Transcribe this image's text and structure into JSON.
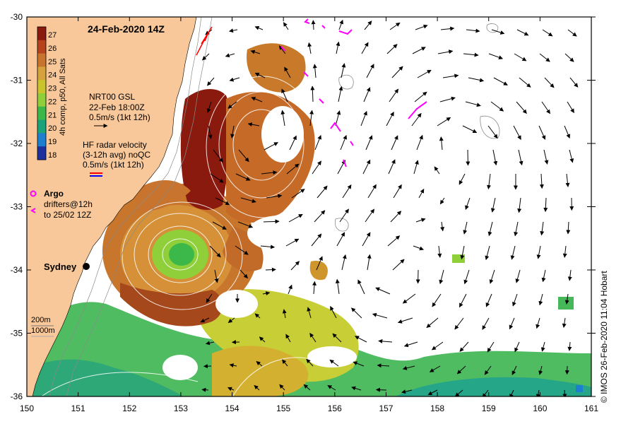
{
  "title": "24-Feb-2020 14Z",
  "colorbar": {
    "label": "4h comp, p50, All Sats",
    "ticks": [
      "27",
      "26",
      "25",
      "24",
      "23",
      "22",
      "21",
      "20",
      "19",
      "18"
    ],
    "colors": [
      "#8b1a0e",
      "#b6431c",
      "#c8742e",
      "#d6a23c",
      "#c9c42c",
      "#8fcf3a",
      "#3cb84a",
      "#18a37a",
      "#1d7fd0",
      "#1e2f9e"
    ]
  },
  "legend": {
    "gsl_title": "NRT00 GSL",
    "gsl_date": "22-Feb 18:00Z",
    "gsl_scale": "0.5m/s (1kt 12h)",
    "radar_title": "HF radar velocity",
    "radar_sub": "(3-12h avg) noQC",
    "radar_scale": "0.5m/s (1kt 12h)",
    "argo_label": "Argo",
    "drifters_label": "drifters@12h",
    "drifters_to": "to 25/02 12Z",
    "iso_200": "200m",
    "iso_1000": "1000m"
  },
  "places": {
    "sydney": "Sydney"
  },
  "credit": "© IMOS 26-Feb-2020 11:04 Hobart",
  "axes": {
    "x_ticks": [
      "150",
      "151",
      "152",
      "153",
      "154",
      "155",
      "156",
      "157",
      "158",
      "159",
      "160",
      "161"
    ],
    "y_ticks": [
      "-30",
      "-31",
      "-32",
      "-33",
      "-34",
      "-35",
      "-36"
    ],
    "lon_range": [
      150,
      161
    ],
    "lat_range": [
      -36,
      -30
    ]
  },
  "colors": {
    "land": "#f8c89a",
    "sea": "#ffffff",
    "drifter": "#ff00ff",
    "radar_red": "#ff0000",
    "radar_blue": "#0000ff"
  }
}
